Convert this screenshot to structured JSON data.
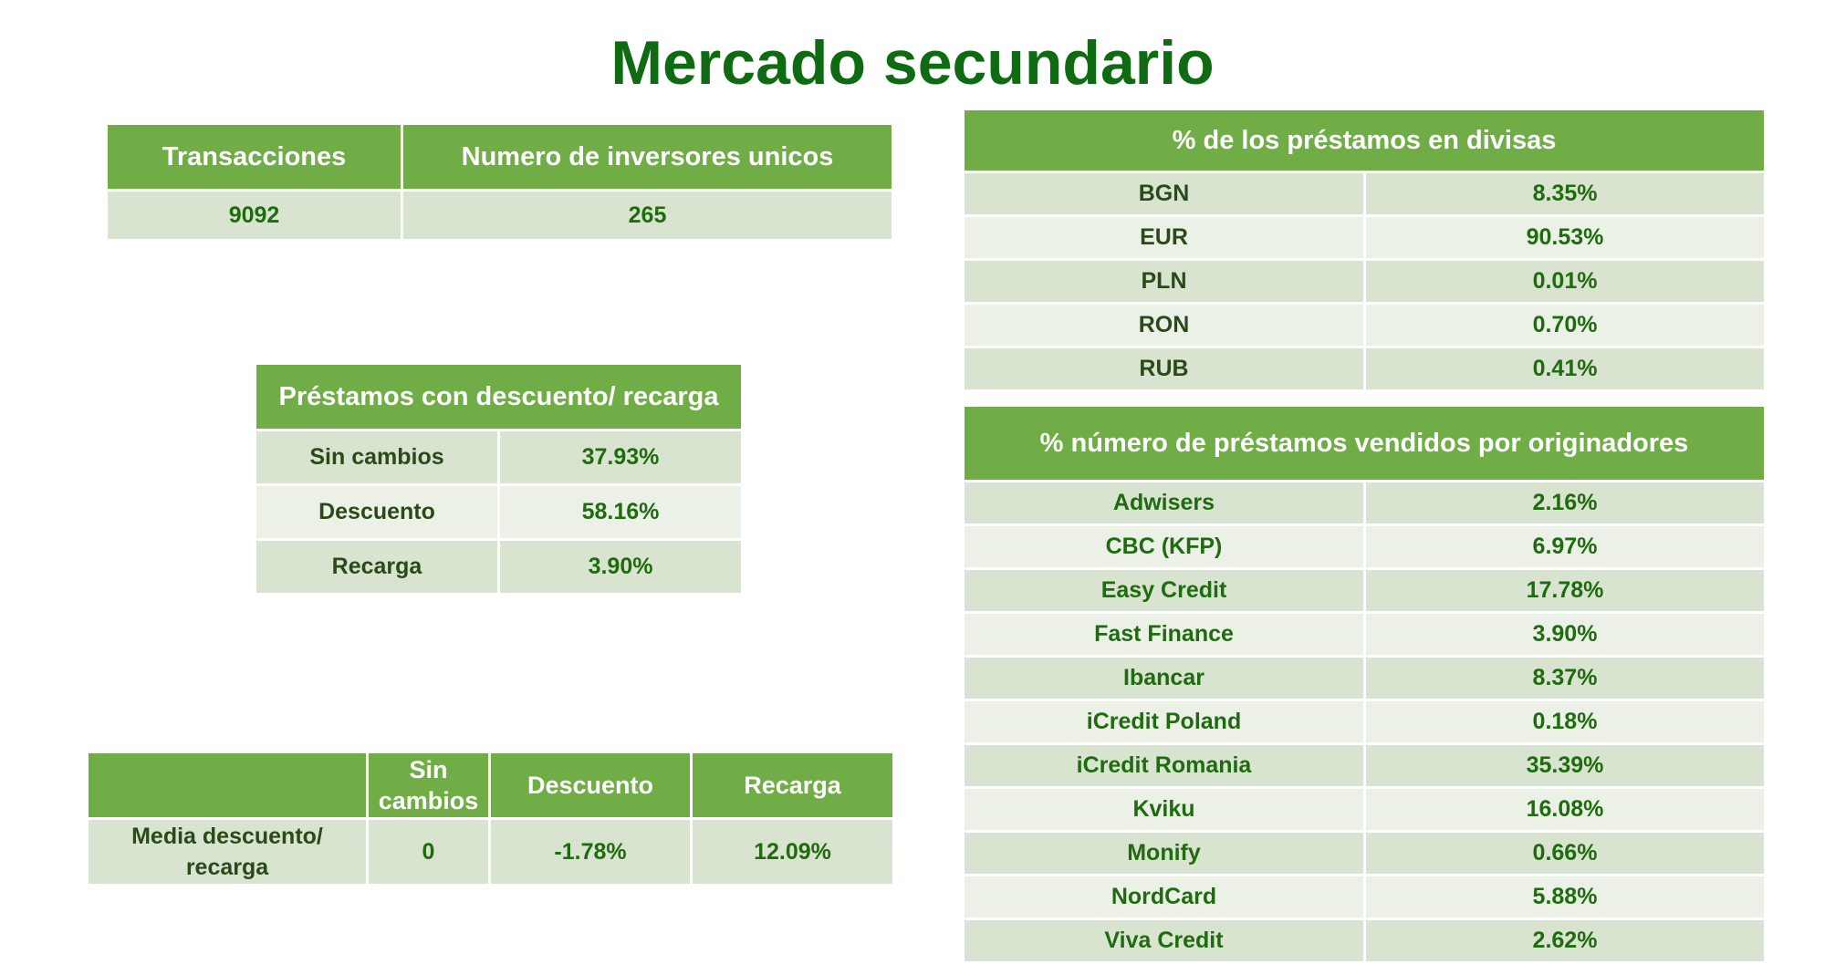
{
  "title": "Mercado secundario",
  "summary": {
    "headers": [
      "Transacciones",
      "Numero de inversores unicos"
    ],
    "values": [
      "9092",
      "265"
    ]
  },
  "discount": {
    "header": "Préstamos con descuento/ recarga",
    "rows": [
      {
        "label": "Sin cambios",
        "value": "37.93%"
      },
      {
        "label": "Descuento",
        "value": "58.16%"
      },
      {
        "label": "Recarga",
        "value": "3.90%"
      }
    ]
  },
  "average": {
    "headers": [
      "",
      "Sin cambios",
      "Descuento",
      "Recarga"
    ],
    "row": {
      "label": "Media descuento/ recarga",
      "values": [
        "0",
        "-1.78%",
        "12.09%"
      ]
    }
  },
  "currencies": {
    "header": "% de los  préstamos en divisas",
    "rows": [
      {
        "label": "BGN",
        "value": "8.35%"
      },
      {
        "label": "EUR",
        "value": "90.53%"
      },
      {
        "label": "PLN",
        "value": "0.01%"
      },
      {
        "label": "RON",
        "value": "0.70%"
      },
      {
        "label": "RUB",
        "value": "0.41%"
      }
    ]
  },
  "originators": {
    "header": "% número de préstamos vendidos por originadores",
    "rows": [
      {
        "label": "Adwisers",
        "value": "2.16%"
      },
      {
        "label": "CBC (KFP)",
        "value": "6.97%"
      },
      {
        "label": "Easy Credit",
        "value": "17.78%"
      },
      {
        "label": "Fast Finance",
        "value": "3.90%"
      },
      {
        "label": "Ibancar",
        "value": "8.37%"
      },
      {
        "label": "iCredit Poland",
        "value": "0.18%"
      },
      {
        "label": "iCredit Romania",
        "value": "35.39%"
      },
      {
        "label": "Kviku",
        "value": "16.08%"
      },
      {
        "label": "Monify",
        "value": "0.66%"
      },
      {
        "label": "NordCard",
        "value": "5.88%"
      },
      {
        "label": "Viva Credit",
        "value": "2.62%"
      }
    ]
  }
}
